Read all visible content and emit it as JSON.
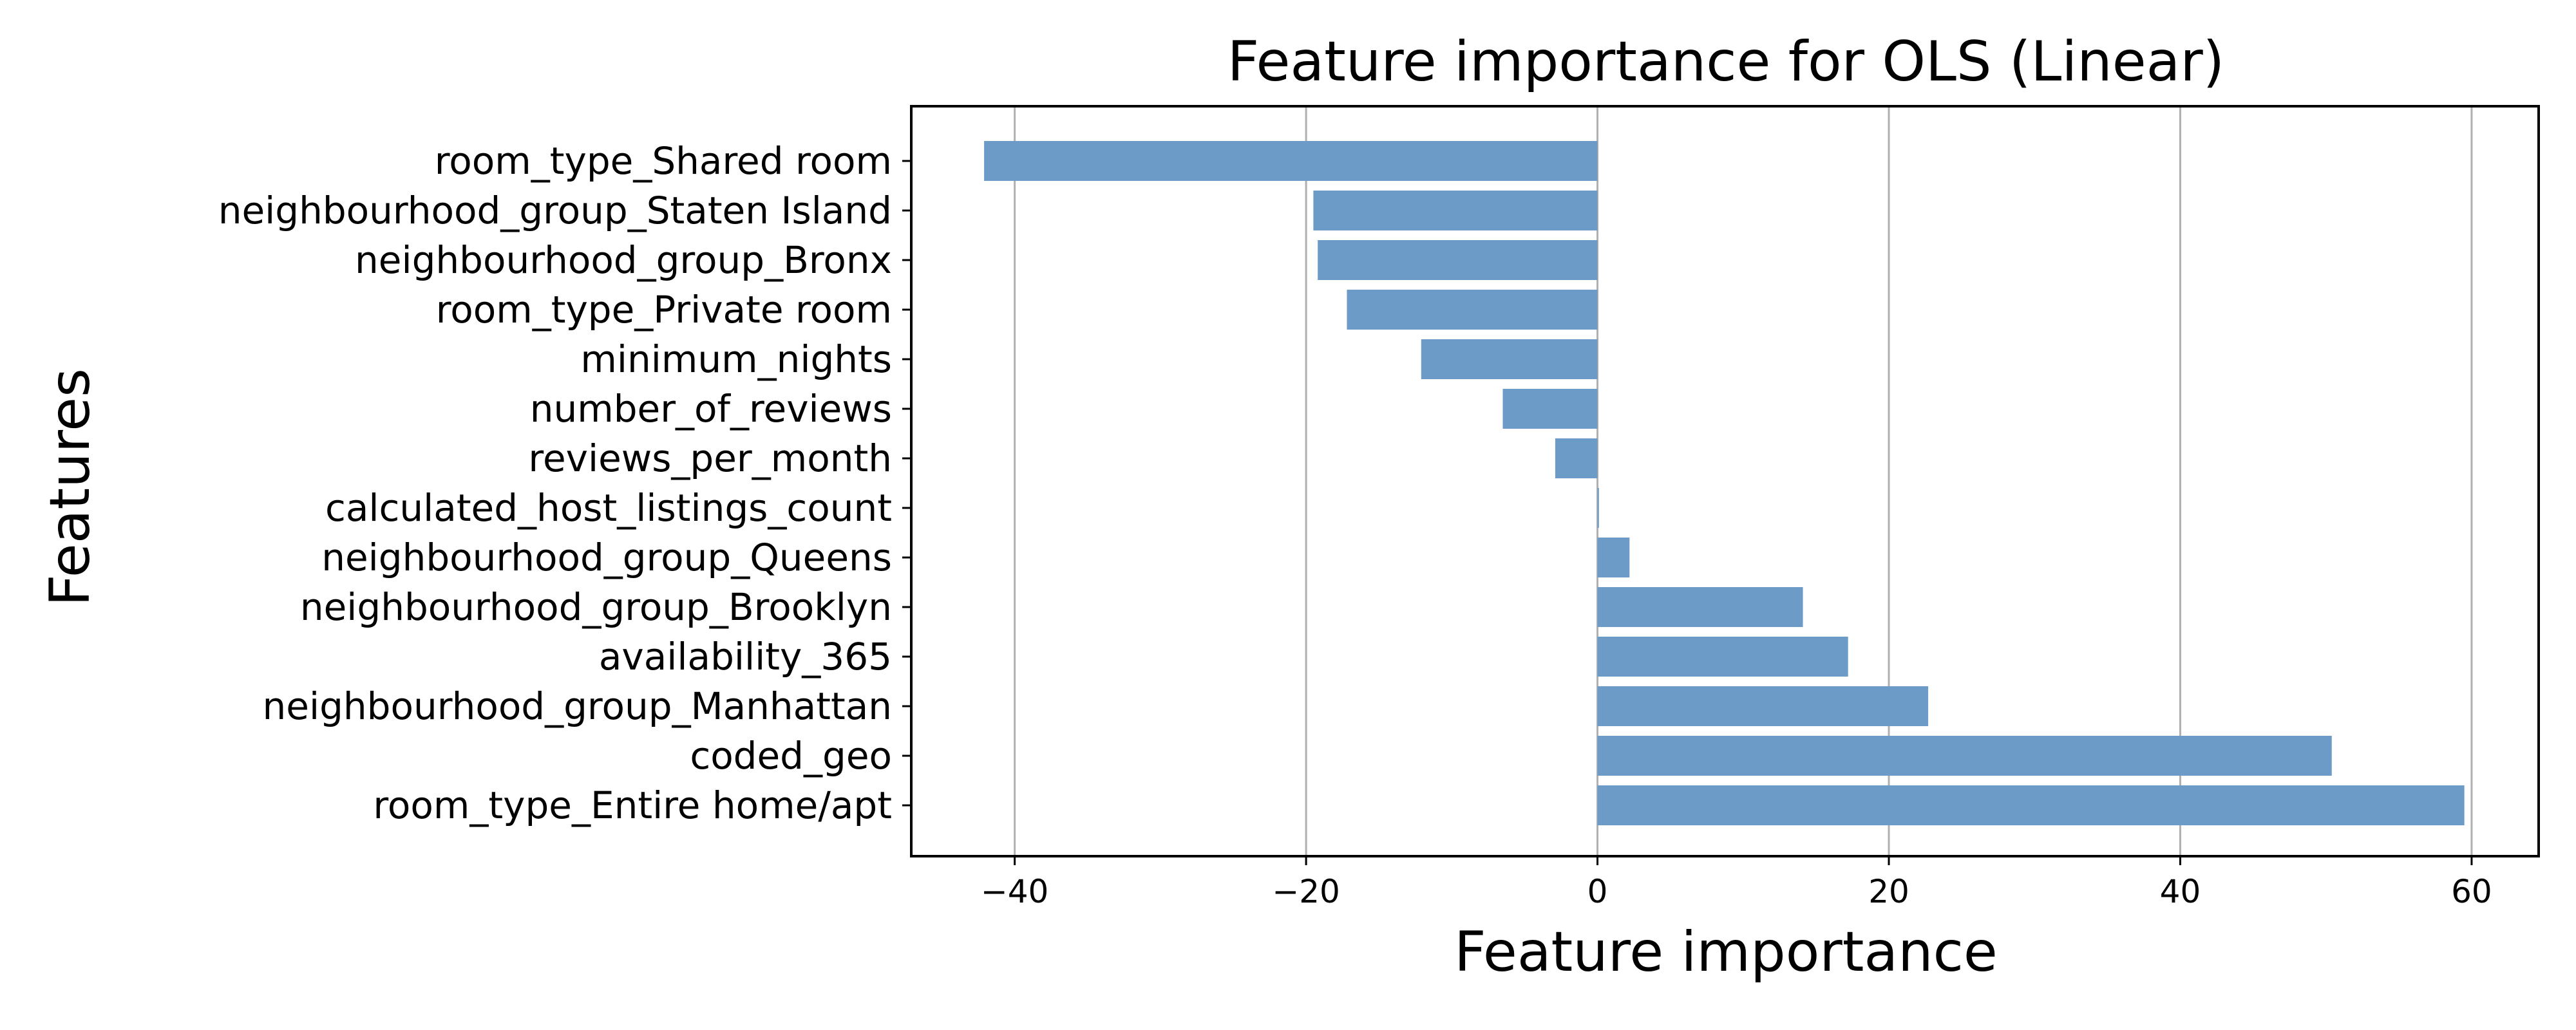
{
  "chart_data": {
    "type": "bar",
    "orientation": "horizontal",
    "title": "Feature importance for OLS (Linear)",
    "xlabel": "Feature importance",
    "ylabel": "Features",
    "categories": [
      "room_type_Shared room",
      "neighbourhood_group_Staten Island",
      "neighbourhood_group_Bronx",
      "room_type_Private room",
      "minimum_nights",
      "number_of_reviews",
      "reviews_per_month",
      "calculated_host_listings_count",
      "neighbourhood_group_Queens",
      "neighbourhood_group_Brooklyn",
      "availability_365",
      "neighbourhood_group_Manhattan",
      "coded_geo",
      "room_type_Entire home/apt"
    ],
    "values": [
      -42.1,
      -19.5,
      -19.2,
      -17.2,
      -12.1,
      -6.5,
      -2.9,
      0.1,
      2.2,
      14.1,
      17.2,
      22.7,
      50.4,
      59.5
    ],
    "xlim": [
      -47.1,
      64.6
    ],
    "xticks": [
      -40,
      -20,
      0,
      20,
      40,
      60
    ],
    "xtick_labels": [
      "−40",
      "−20",
      "0",
      "20",
      "40",
      "60"
    ],
    "grid": "vertical",
    "bar_color": "#6b9bc6"
  }
}
